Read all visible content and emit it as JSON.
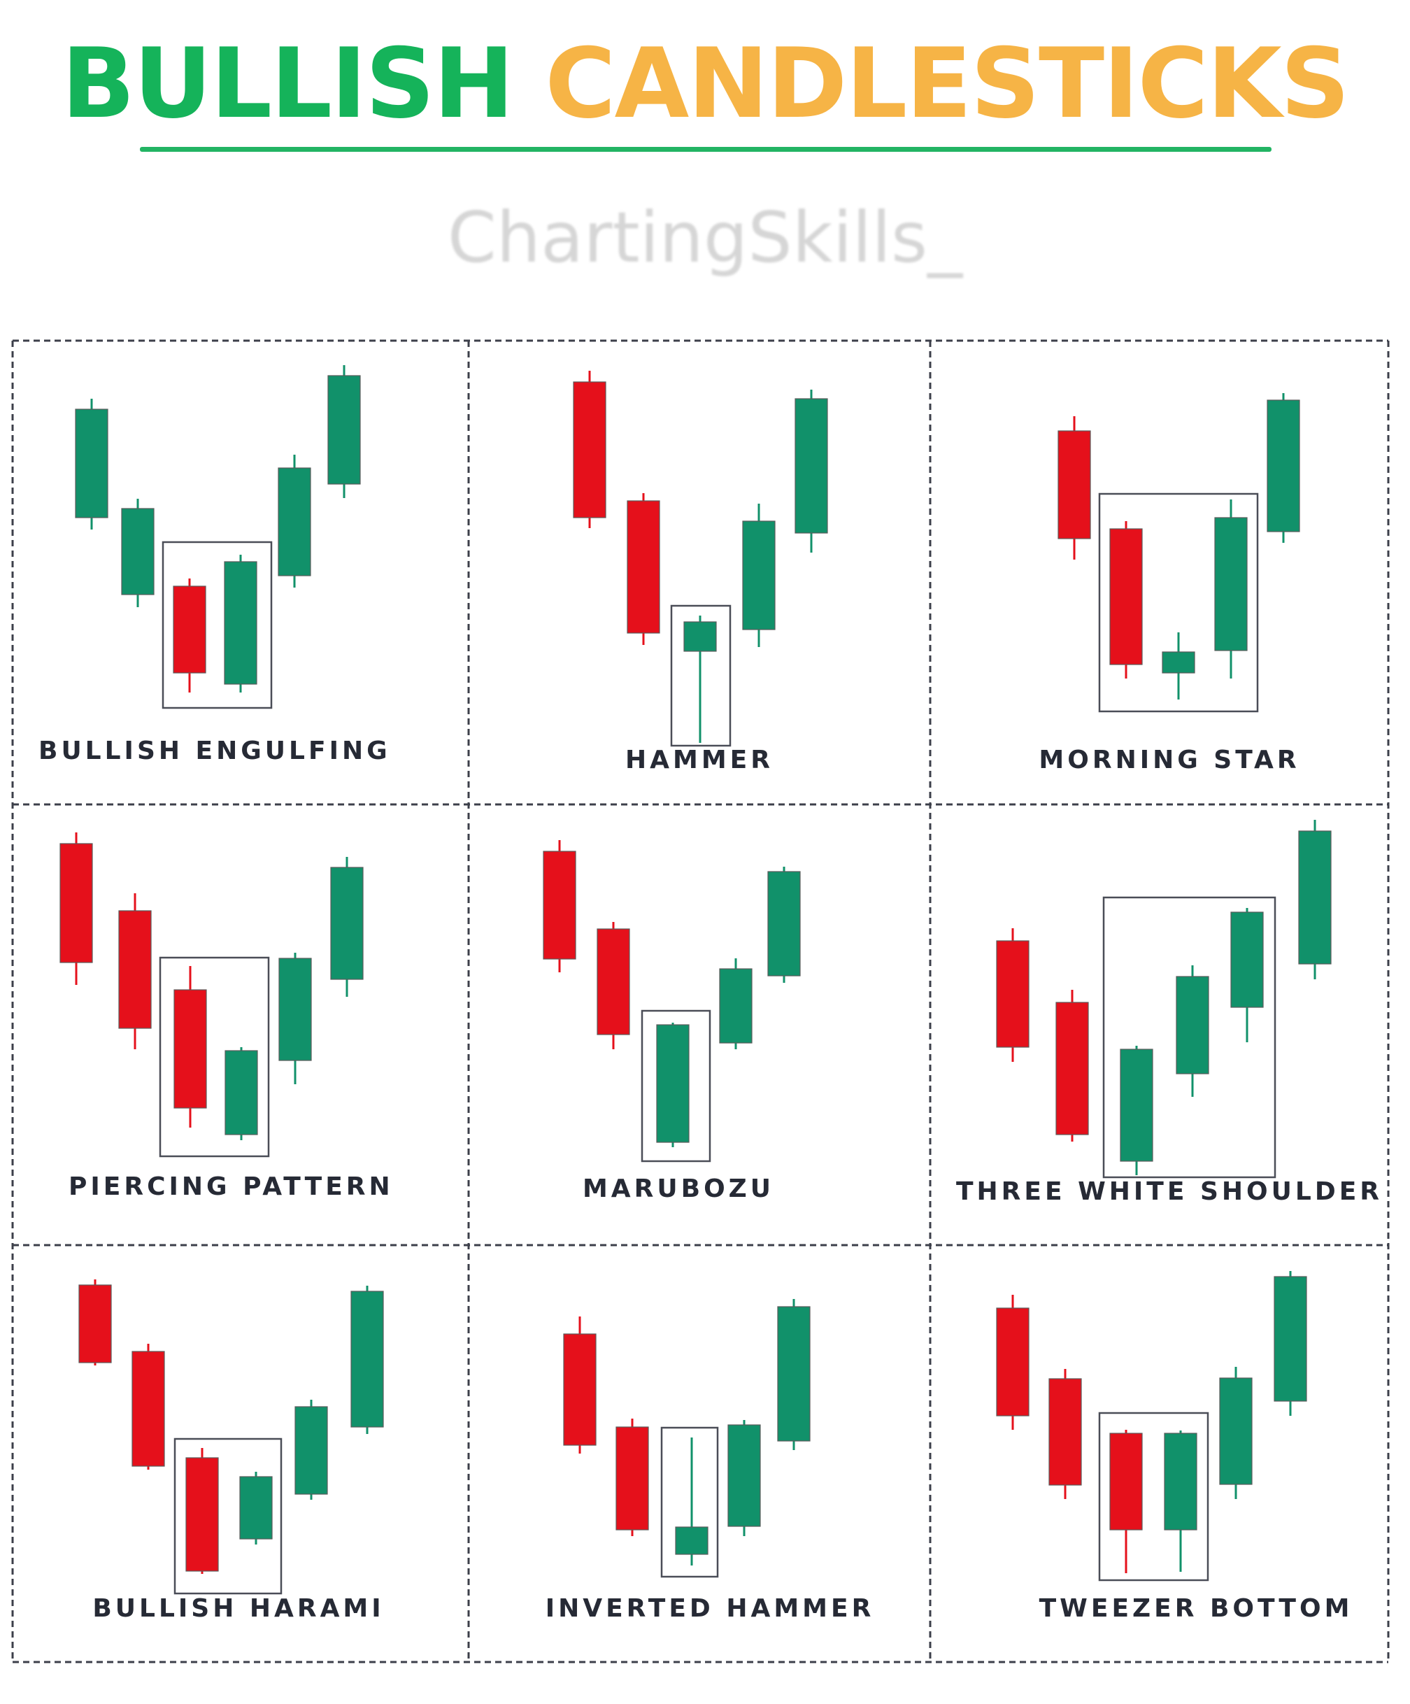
{
  "header": {
    "title_part1": "BULLISH",
    "title_part2": "CANDLESTICKS",
    "watermark": "ChartingSkills_"
  },
  "colors": {
    "bull": "#11916a",
    "bear": "#e5101b",
    "title_green": "#15b35a",
    "title_orange": "#f6b446",
    "label": "#262a35"
  },
  "patterns": [
    {
      "label": "BULLISH ENGULFING"
    },
    {
      "label": "HAMMER"
    },
    {
      "label": "MORNING STAR"
    },
    {
      "label": "PIERCING PATTERN"
    },
    {
      "label": "MARUBOZU"
    },
    {
      "label": "THREE WHITE SHOULDER"
    },
    {
      "label": "BULLISH HARAMI"
    },
    {
      "label": "INVERTED HAMMER"
    },
    {
      "label": "TWEEZER BOTTOM"
    }
  ]
}
